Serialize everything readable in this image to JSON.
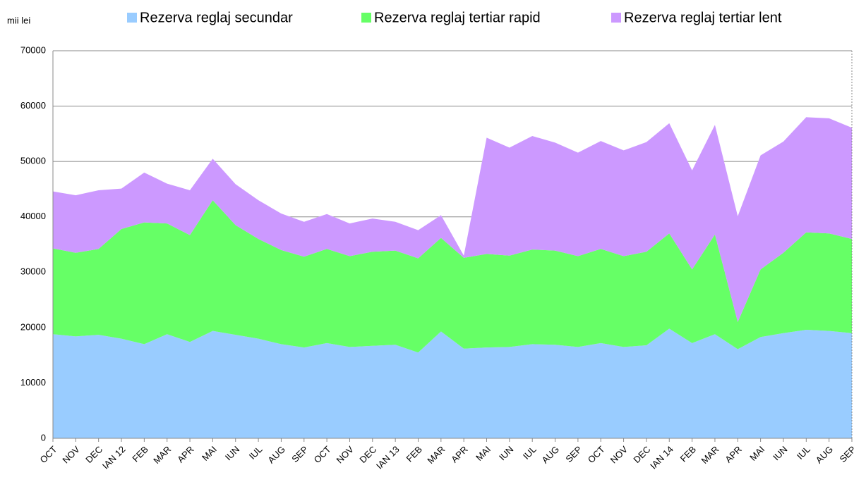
{
  "chart_data": {
    "type": "stacked_area",
    "y_label": "mii lei",
    "categories": [
      "OCT",
      "NOV",
      "DEC",
      "IAN 12",
      "FEB",
      "MAR",
      "APR",
      "MAI",
      "IUN",
      "IUL",
      "AUG",
      "SEP",
      "OCT",
      "NOV",
      "DEC",
      "IAN 13",
      "FEB",
      "MAR",
      "APR",
      "MAI",
      "IUN",
      "IUL",
      "AUG",
      "SEP",
      "OCT",
      "NOV",
      "DEC",
      "IAN 14",
      "FEB",
      "MAR",
      "APR",
      "MAI",
      "IUN",
      "IUL",
      "AUG",
      "SEP"
    ],
    "series": [
      {
        "name": "Rezerva reglaj secundar",
        "color": "#99ccff",
        "values": [
          18800,
          18400,
          18700,
          18000,
          17000,
          18800,
          17400,
          19400,
          18700,
          18000,
          17000,
          16400,
          17200,
          16500,
          16700,
          16900,
          15500,
          19300,
          16200,
          16400,
          16500,
          17000,
          16900,
          16500,
          17200,
          16500,
          16800,
          19800,
          17200,
          18800,
          16100,
          18300,
          19000,
          19600,
          19400,
          19000
        ]
      },
      {
        "name": "Rezerva reglaj tertiar rapid",
        "color": "#66ff66",
        "values": [
          15500,
          15100,
          15500,
          19800,
          22000,
          20000,
          19300,
          23600,
          19800,
          18000,
          17000,
          16400,
          17000,
          16400,
          17000,
          17000,
          17000,
          16900,
          16400,
          16900,
          16500,
          17100,
          17000,
          16400,
          17000,
          16400,
          16900,
          17200,
          13300,
          18000,
          4900,
          12200,
          14500,
          17600,
          17600,
          17000
        ]
      },
      {
        "name": "Rezerva reglaj tertiar lent",
        "color": "#cc99ff",
        "values": [
          10300,
          10400,
          10600,
          7300,
          9000,
          7200,
          8100,
          7500,
          7400,
          7000,
          6600,
          6300,
          6300,
          5900,
          6000,
          5200,
          5100,
          4100,
          400,
          21000,
          19500,
          20500,
          19500,
          18700,
          19500,
          19100,
          19800,
          19900,
          17900,
          19800,
          19100,
          20600,
          20100,
          20800,
          20800,
          20100
        ]
      }
    ],
    "ylim": [
      0,
      70000
    ],
    "yticks": [
      0,
      10000,
      20000,
      30000,
      40000,
      50000,
      60000,
      70000
    ],
    "grid": true
  }
}
